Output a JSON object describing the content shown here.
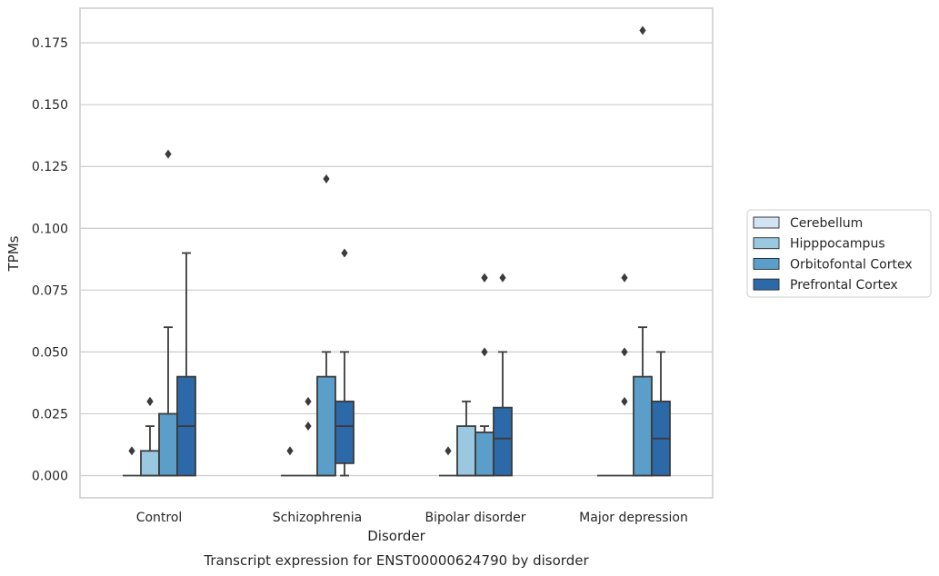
{
  "chart_data": {
    "type": "box",
    "xlabel": "Disorder",
    "ylabel": "TPMs",
    "caption": "Transcript expression for ENST00000624790 by disorder",
    "ylim": [
      -0.009,
      0.189
    ],
    "y_ticks": [
      "0.000",
      "0.025",
      "0.050",
      "0.075",
      "0.100",
      "0.125",
      "0.150",
      "0.175"
    ],
    "grid": true,
    "legend_position": "right",
    "categories": [
      "Control",
      "Schizophrenia",
      "Bipolar disorder",
      "Major depression"
    ],
    "series": [
      {
        "name": "Cerebellum",
        "color": "#d2e3f3",
        "boxes": [
          {
            "q1": 0,
            "median": 0,
            "q3": 0,
            "whisker_low": 0,
            "whisker_high": 0,
            "outliers": [
              0.01
            ]
          },
          {
            "q1": 0,
            "median": 0,
            "q3": 0,
            "whisker_low": 0,
            "whisker_high": 0,
            "outliers": [
              0.01
            ]
          },
          {
            "q1": 0,
            "median": 0,
            "q3": 0,
            "whisker_low": 0,
            "whisker_high": 0,
            "outliers": [
              0.01
            ]
          },
          {
            "q1": 0,
            "median": 0,
            "q3": 0,
            "whisker_low": 0,
            "whisker_high": 0,
            "outliers": []
          }
        ]
      },
      {
        "name": "Hipppocampus",
        "color": "#9ac8e0",
        "boxes": [
          {
            "q1": 0,
            "median": 0,
            "q3": 0.01,
            "whisker_low": 0,
            "whisker_high": 0.02,
            "outliers": [
              0.03,
              0.03
            ]
          },
          {
            "q1": 0,
            "median": 0,
            "q3": 0,
            "whisker_low": 0,
            "whisker_high": 0,
            "outliers": [
              0.02,
              0.03
            ]
          },
          {
            "q1": 0,
            "median": 0,
            "q3": 0.02,
            "whisker_low": 0,
            "whisker_high": 0.03,
            "outliers": []
          },
          {
            "q1": 0,
            "median": 0,
            "q3": 0,
            "whisker_low": 0,
            "whisker_high": 0,
            "outliers": [
              0.03,
              0.05,
              0.08
            ]
          }
        ]
      },
      {
        "name": "Orbitofontal Cortex",
        "color": "#5a9ec9",
        "boxes": [
          {
            "q1": 0,
            "median": 0,
            "q3": 0.025,
            "whisker_low": 0,
            "whisker_high": 0.06,
            "outliers": [
              0.13
            ]
          },
          {
            "q1": 0,
            "median": 0,
            "q3": 0.04,
            "whisker_low": 0,
            "whisker_high": 0.05,
            "outliers": [
              0.12
            ]
          },
          {
            "q1": 0,
            "median": 0,
            "q3": 0.0175,
            "whisker_low": 0,
            "whisker_high": 0.02,
            "outliers": [
              0.05,
              0.08,
              0.08
            ]
          },
          {
            "q1": 0,
            "median": 0,
            "q3": 0.04,
            "whisker_low": 0,
            "whisker_high": 0.06,
            "outliers": [
              0.18
            ]
          }
        ]
      },
      {
        "name": "Prefrontal Cortex",
        "color": "#2c69a8",
        "boxes": [
          {
            "q1": 0,
            "median": 0.02,
            "q3": 0.04,
            "whisker_low": 0,
            "whisker_high": 0.09,
            "outliers": []
          },
          {
            "q1": 0.005,
            "median": 0.02,
            "q3": 0.03,
            "whisker_low": 0,
            "whisker_high": 0.05,
            "outliers": [
              0.09
            ]
          },
          {
            "q1": 0,
            "median": 0.015,
            "q3": 0.0275,
            "whisker_low": 0,
            "whisker_high": 0.05,
            "outliers": [
              0.08
            ]
          },
          {
            "q1": 0,
            "median": 0.015,
            "q3": 0.03,
            "whisker_low": 0,
            "whisker_high": 0.05,
            "outliers": []
          }
        ]
      }
    ]
  }
}
